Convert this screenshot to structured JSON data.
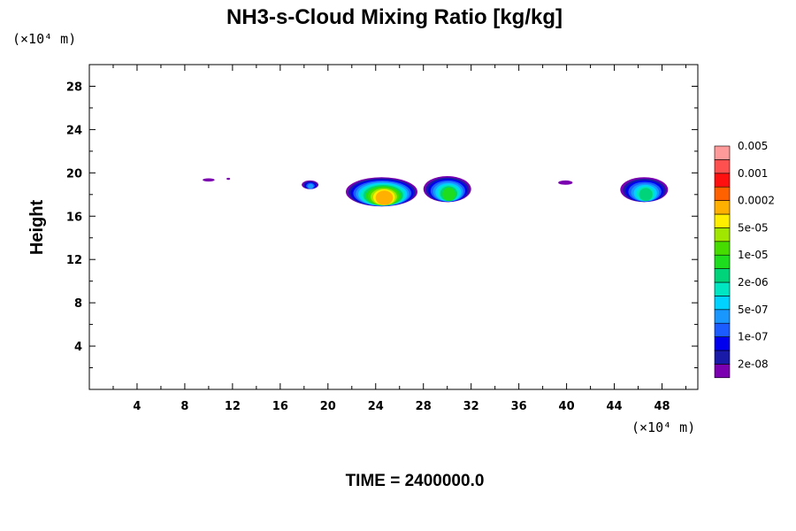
{
  "chart_data": {
    "type": "heatmap",
    "title": "NH3-s-Cloud Mixing Ratio [kg/kg]",
    "ylabel": "Height",
    "x_unit": "(×10⁴ m)",
    "y_unit": "(×10⁴ m)",
    "xlim": [
      0,
      51
    ],
    "ylim": [
      0,
      30
    ],
    "xticks": [
      4,
      8,
      12,
      16,
      20,
      24,
      28,
      32,
      36,
      40,
      44,
      48
    ],
    "yticks": [
      4,
      8,
      12,
      16,
      20,
      24,
      28
    ],
    "time_label": "TIME = 2400000.0",
    "colorbar": {
      "levels": [
        "2e-08",
        "1e-07",
        "5e-07",
        "2e-06",
        "1e-05",
        "5e-05",
        "0.0002",
        "0.001",
        "0.005"
      ],
      "colors": [
        "#7a00b0",
        "#1a1aa8",
        "#0000ee",
        "#1a5cff",
        "#1a96ff",
        "#00d2ff",
        "#00e6c3",
        "#00d47a",
        "#1edc1e",
        "#46dc00",
        "#a0e600",
        "#ffee00",
        "#ffb000",
        "#ff6000",
        "#ff1010",
        "#ff5050",
        "#ff9a9a"
      ]
    },
    "cloud_patches": [
      {
        "x": [
          9.5,
          10.5
        ],
        "y": [
          19.2,
          19.5
        ],
        "max_level": "2e-08"
      },
      {
        "x": [
          11.5,
          11.8
        ],
        "y": [
          19.4,
          19.5
        ],
        "max_level": "2e-08"
      },
      {
        "x": [
          17.8,
          19.2
        ],
        "y": [
          18.5,
          19.3
        ],
        "max_level": "5e-07"
      },
      {
        "x": [
          21.5,
          27.5
        ],
        "y": [
          16.9,
          19.6
        ],
        "max_level": "0.0002"
      },
      {
        "x": [
          28.0,
          32.0
        ],
        "y": [
          17.3,
          19.7
        ],
        "max_level": "1e-05"
      },
      {
        "x": [
          39.3,
          40.5
        ],
        "y": [
          18.9,
          19.3
        ],
        "max_level": "2e-08"
      },
      {
        "x": [
          44.5,
          48.5
        ],
        "y": [
          17.3,
          19.6
        ],
        "max_level": "5e-06"
      }
    ]
  }
}
